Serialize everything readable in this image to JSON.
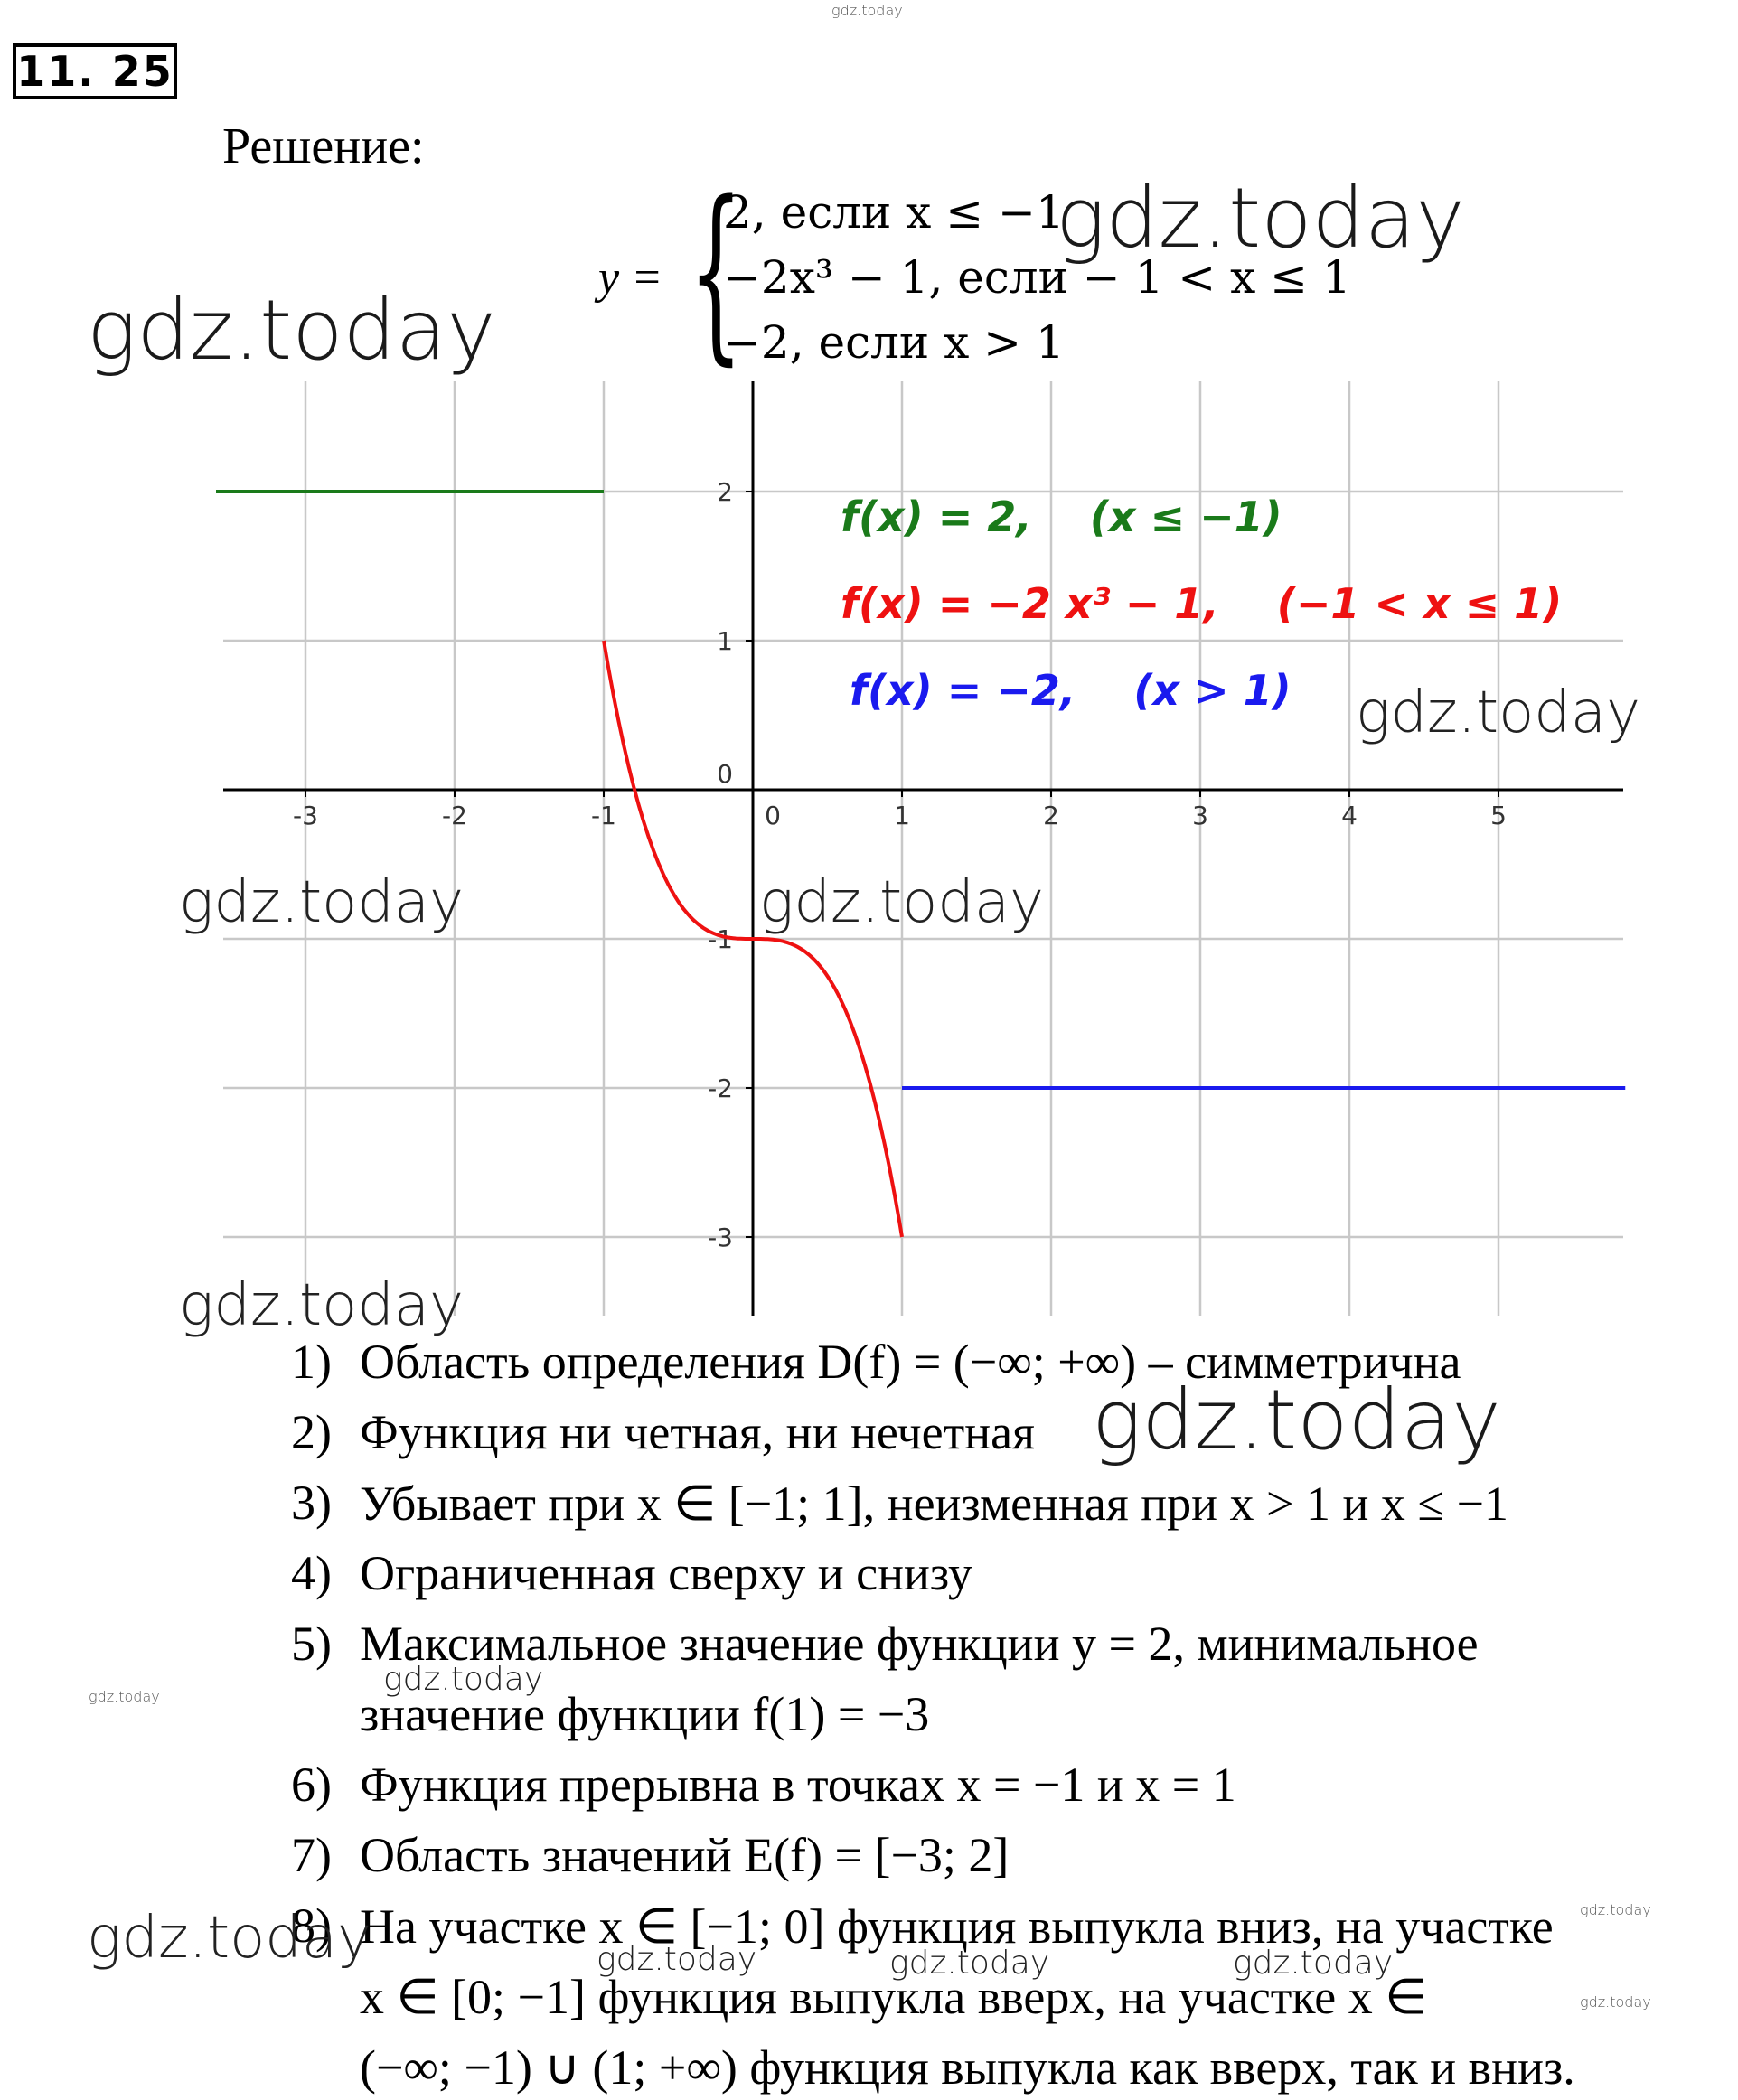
{
  "header": {
    "problem_number": "11. 25",
    "solution_label": "Решение:"
  },
  "system": {
    "lhs": "y =",
    "cases": [
      "2, если x ≤ −1",
      "−2x³ − 1, если − 1 < x ≤ 1",
      "−2, если x > 1"
    ]
  },
  "chart_data": {
    "type": "line",
    "xlim": [
      -3.6,
      5.85
    ],
    "ylim": [
      -3.55,
      2.75
    ],
    "x_ticks": [
      -3,
      -2,
      -1,
      0,
      1,
      2,
      3,
      4,
      5
    ],
    "y_ticks": [
      -3,
      -2,
      -1,
      0,
      1,
      2
    ],
    "x_tick_labels": [
      "-3",
      "-2",
      "-1",
      "0",
      "1",
      "2",
      "3",
      "4",
      "5"
    ],
    "y_tick_labels": [
      "-3",
      "-2",
      "-1",
      "0",
      "1",
      "2"
    ],
    "grid": true,
    "series": [
      {
        "name": "f(x) = 2,    (x ≤ −1)",
        "color": "#1a7a1a",
        "kind": "constant",
        "value": 2,
        "x_from": -3.6,
        "x_to": -1
      },
      {
        "name": "f(x) = −2 x³ − 1,    (−1 < x ≤ 1)",
        "color": "#ee1111",
        "kind": "cubic",
        "x_from": -1,
        "x_to": 1,
        "points": [
          [
            -1,
            1
          ],
          [
            -0.5,
            -0.75
          ],
          [
            0,
            -1
          ],
          [
            0.5,
            -1.25
          ],
          [
            1,
            -3
          ]
        ]
      },
      {
        "name": "f(x) = −2,    (x > 1)",
        "color": "#1a1aee",
        "kind": "constant",
        "value": -2,
        "x_from": 1,
        "x_to": 5.85
      }
    ],
    "legend_placement": "top-right"
  },
  "items": [
    {
      "num": "1)",
      "text": "Область определения D(f) = (−∞; +∞) – симметрична"
    },
    {
      "num": "2)",
      "text": "Функция ни четная, ни нечетная"
    },
    {
      "num": "3)",
      "text": "Убывает при x ∈ [−1; 1], неизменная при x > 1 и x ≤ −1"
    },
    {
      "num": "4)",
      "text": "Ограниченная сверху и снизу"
    },
    {
      "num": "5)",
      "text": "Максимальное значение функции y = 2, минимальное",
      "cont": "значение функции f(1) = −3"
    },
    {
      "num": "6)",
      "text": "Функция прерывна в точках x = −1 и x = 1"
    },
    {
      "num": "7)",
      "text": "Область значений E(f) = [−3; 2]"
    },
    {
      "num": "8)",
      "text": "На участке x ∈ [−1; 0] функция выпукла вниз, на участке",
      "cont": "x ∈ [0; −1] функция выпукла вверх, на участке x ∈",
      "cont2": "(−∞; −1) ∪ (1; +∞) функция выпукла как вверх, так и вниз."
    }
  ],
  "watermark": "gdz.today"
}
